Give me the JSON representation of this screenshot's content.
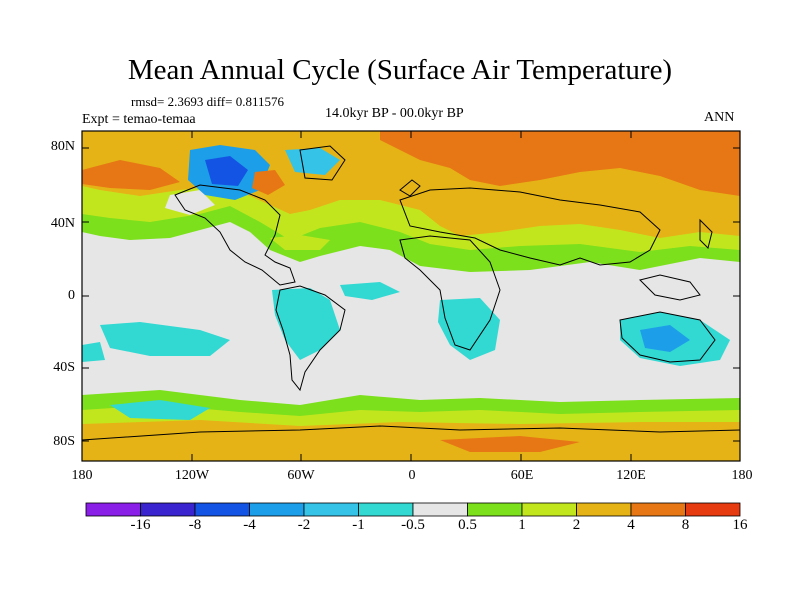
{
  "title": "Mean Annual Cycle (Surface Air Temperature)",
  "stats_text": "rmsd= 2.3693 diff= 0.811576",
  "experiment_text": "Expt = temao-temaa",
  "period_text": "14.0kyr BP - 00.0kyr BP",
  "season": "ANN",
  "lat_labels": [
    "80N",
    "40N",
    "0",
    "40S",
    "80S"
  ],
  "lon_labels": [
    "180",
    "120W",
    "60W",
    "0",
    "60E",
    "120E",
    "180"
  ],
  "colorbar": {
    "labels": [
      "-16",
      "-8",
      "-4",
      "-2",
      "-1",
      "-0.5",
      "0.5",
      "1",
      "2",
      "4",
      "8",
      "16"
    ],
    "colors": [
      "#8a1fe8",
      "#3a24d0",
      "#1454e4",
      "#1d9ee8",
      "#35c3e8",
      "#32d8d2",
      "#e6e6e6",
      "#7ce01c",
      "#c2e61e",
      "#e6b316",
      "#e67714",
      "#e63a10"
    ]
  },
  "palette": {
    "land_outline": "#000000",
    "neutral": "#e6e6e6",
    "warm_orange": "#e67714",
    "warm_gold": "#e6b316",
    "lime": "#c2e61e",
    "green": "#7ce01c",
    "cyan": "#32d8d2",
    "light_blue": "#1d9ee8",
    "blue": "#1454e4"
  }
}
